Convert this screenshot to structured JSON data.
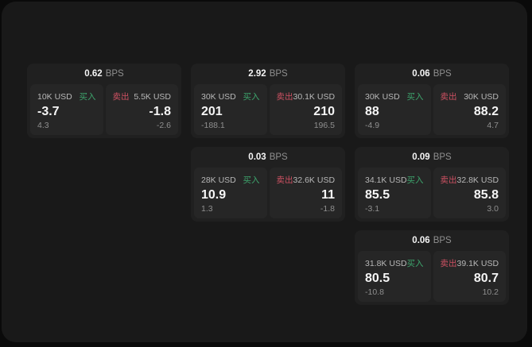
{
  "labels": {
    "bps": "BPS",
    "buy": "买入",
    "sell": "卖出"
  },
  "colors": {
    "page_bg": "#0a0a0a",
    "window_bg": "#191919",
    "card_bg": "#202020",
    "panel_bg": "#262626",
    "value_white": "#f5f5f5",
    "size_gray": "#b8b8b8",
    "dim_gray": "#8f8f8f",
    "buy_green": "#3da56d",
    "sell_red": "#cd5162"
  },
  "cards": [
    {
      "bps": "0.62",
      "buy": {
        "size": "10K USD",
        "value": "-3.7",
        "change": "4.3"
      },
      "sell": {
        "size": "5.5K USD",
        "value": "-1.8",
        "change": "-2.6"
      }
    },
    {
      "bps": "2.92",
      "buy": {
        "size": "30K USD",
        "value": "201",
        "change": "-188.1"
      },
      "sell": {
        "size": "30.1K USD",
        "value": "210",
        "change": "196.5"
      }
    },
    {
      "bps": "0.06",
      "buy": {
        "size": "30K USD",
        "value": "88",
        "change": "-4.9"
      },
      "sell": {
        "size": "30K USD",
        "value": "88.2",
        "change": "4.7"
      }
    },
    {
      "bps": "0.03",
      "buy": {
        "size": "28K USD",
        "value": "10.9",
        "change": "1.3"
      },
      "sell": {
        "size": "32.6K USD",
        "value": "11",
        "change": "-1.8"
      }
    },
    {
      "bps": "0.09",
      "buy": {
        "size": "34.1K USD",
        "value": "85.5",
        "change": "-3.1"
      },
      "sell": {
        "size": "32.8K USD",
        "value": "85.8",
        "change": "3.0"
      }
    },
    {
      "bps": "0.06",
      "buy": {
        "size": "31.8K USD",
        "value": "80.5",
        "change": "-10.8"
      },
      "sell": {
        "size": "39.1K USD",
        "value": "80.7",
        "change": "10.2"
      }
    }
  ]
}
